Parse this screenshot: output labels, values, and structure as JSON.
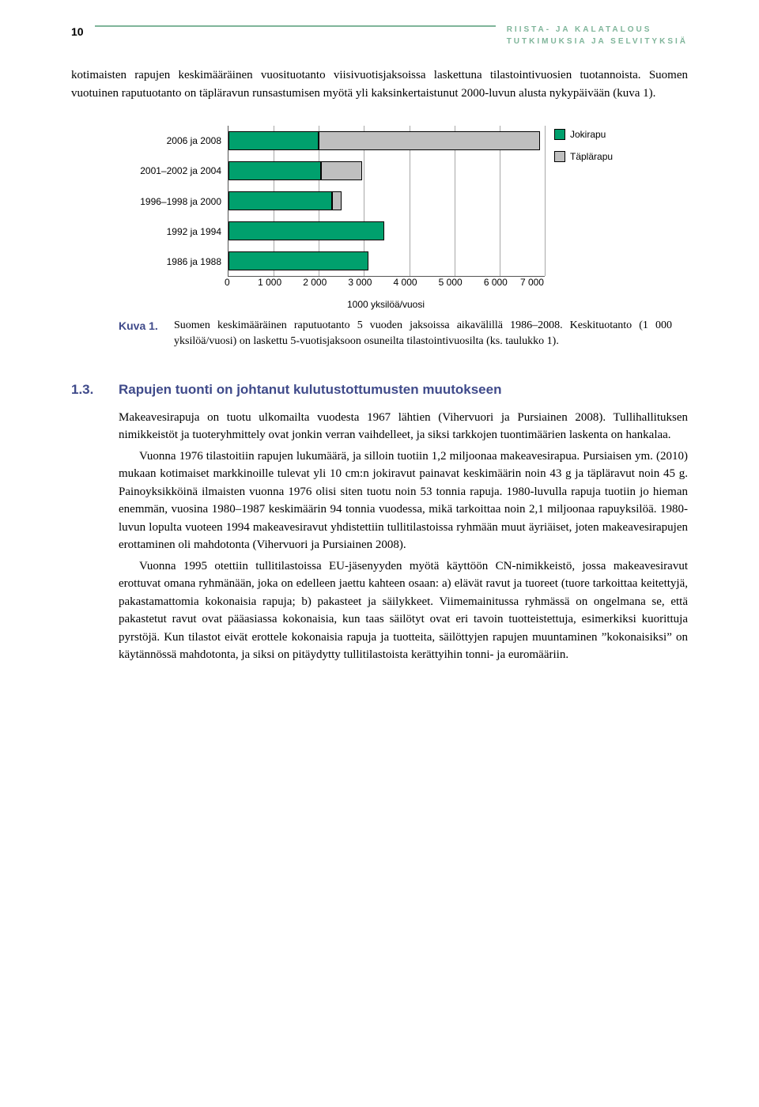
{
  "page_number": "10",
  "header_line1": "RIISTA- JA KALATALOUS",
  "header_line2": "TUTKIMUKSIA JA SELVITYKSIÄ",
  "intro_text": "kotimaisten rapujen keskimääräinen vuosituotanto viisivuotisjaksoissa laskettuna tilastointi­vuosien tuotannoista. Suomen vuotuinen raputuotanto on täpläravun runsastumisen myötä yli kaksinkertaistunut 2000-luvun alusta nykypäivään (kuva 1).",
  "chart": {
    "type": "stacked_horizontal_bar",
    "x_min": 0,
    "x_max": 7000,
    "x_tick_step": 1000,
    "x_ticks": [
      "0",
      "1 000",
      "2 000",
      "3 000",
      "4 000",
      "5 000",
      "6 000",
      "7 000"
    ],
    "x_axis_title": "1000 yksilöä/vuosi",
    "grid_color": "#a8a8a8",
    "series": [
      {
        "name": "Jokirapu",
        "color": "#00a06d"
      },
      {
        "name": "Täplärapu",
        "color": "#bfbfbf"
      }
    ],
    "categories": [
      {
        "label": "2006 ja 2008",
        "values": [
          2000,
          4900
        ]
      },
      {
        "label": "2001–2002 ja 2004",
        "values": [
          2050,
          900
        ]
      },
      {
        "label": "1996–1998 ja 2000",
        "values": [
          2300,
          200
        ]
      },
      {
        "label": "1992 ja 1994",
        "values": [
          3450,
          0
        ]
      },
      {
        "label": "1986 ja 1988",
        "values": [
          3100,
          0
        ]
      }
    ]
  },
  "caption_label": "Kuva 1.",
  "caption_text": "Suomen keskimääräinen raputuotanto 5 vuoden jaksoissa aikavälillä 1986–2008. Keski­tuotanto (1 000 yksilöä/vuosi) on laskettu 5-vuotisjaksoon osuneilta tilastointivuosilta (ks. taulukko 1).",
  "section_num": "1.3.",
  "section_title": "Rapujen tuonti on johtanut kulutustottumusten muutokseen",
  "para1": "Makeavesirapuja on tuotu ulkomailta vuodesta 1967 lähtien (Vihervuori ja Pursiainen 2008). Tullihallituksen nimikkeistöt ja tuoteryhmittely ovat jonkin verran vaihdelleet, ja siksi tarkko­jen tuontimäärien laskenta on hankalaa.",
  "para2": "Vuonna 1976 tilastoitiin rapujen lukumäärä, ja silloin tuotiin 1,2 miljoonaa makeavesira­pua. Pursiaisen ym. (2010) mukaan kotimaiset markkinoille tulevat yli 10 cm:n jokiravut paina­vat keskimäärin noin 43 g ja täpläravut noin 45 g. Painoyksikköinä ilmaisten vuonna 1976 olisi siten tuotu noin 53 tonnia rapuja. 1980-luvulla rapuja tuotiin jo hieman enemmän, vuosina 1980–1987 keskimäärin 94 tonnia vuodessa, mikä tarkoittaa noin 2,1 miljoonaa rapuyksilöä. 1980-lu­vun lopulta vuoteen 1994 makeavesiravut yhdistettiin tullitilastoissa ryhmään muut äyriäiset, joten makeavesirapujen erottaminen oli mahdotonta (Vihervuori ja Pursiainen 2008).",
  "para3": "Vuonna 1995 otettiin tullitilastoissa EU-jäsenyyden myötä käyttöön CN-nimikkeistö, jossa makeavesiravut erottuvat omana ryhmänään, joka on edelleen jaettu kahteen osaan: a) elävät ravut ja tuoreet (tuore tarkoittaa keitettyjä, pakastamattomia kokonaisia rapuja; b) pa­kasteet ja säilykkeet. Viimemainitussa ryhmässä on ongelmana se, että pakastetut ravut ovat pääasiassa kokonaisia, kun taas säilötyt ovat eri tavoin tuotteistettuja, esimerkiksi kuorittuja pyrstöjä. Kun tilastot eivät erottele kokonaisia rapuja ja tuotteita, säilöttyjen rapujen muunta­minen ”kokonaisiksi” on käytännössä mahdotonta, ja siksi on pitäydytty tullitilastoista kerät­tyihin tonni- ja euromääriin."
}
